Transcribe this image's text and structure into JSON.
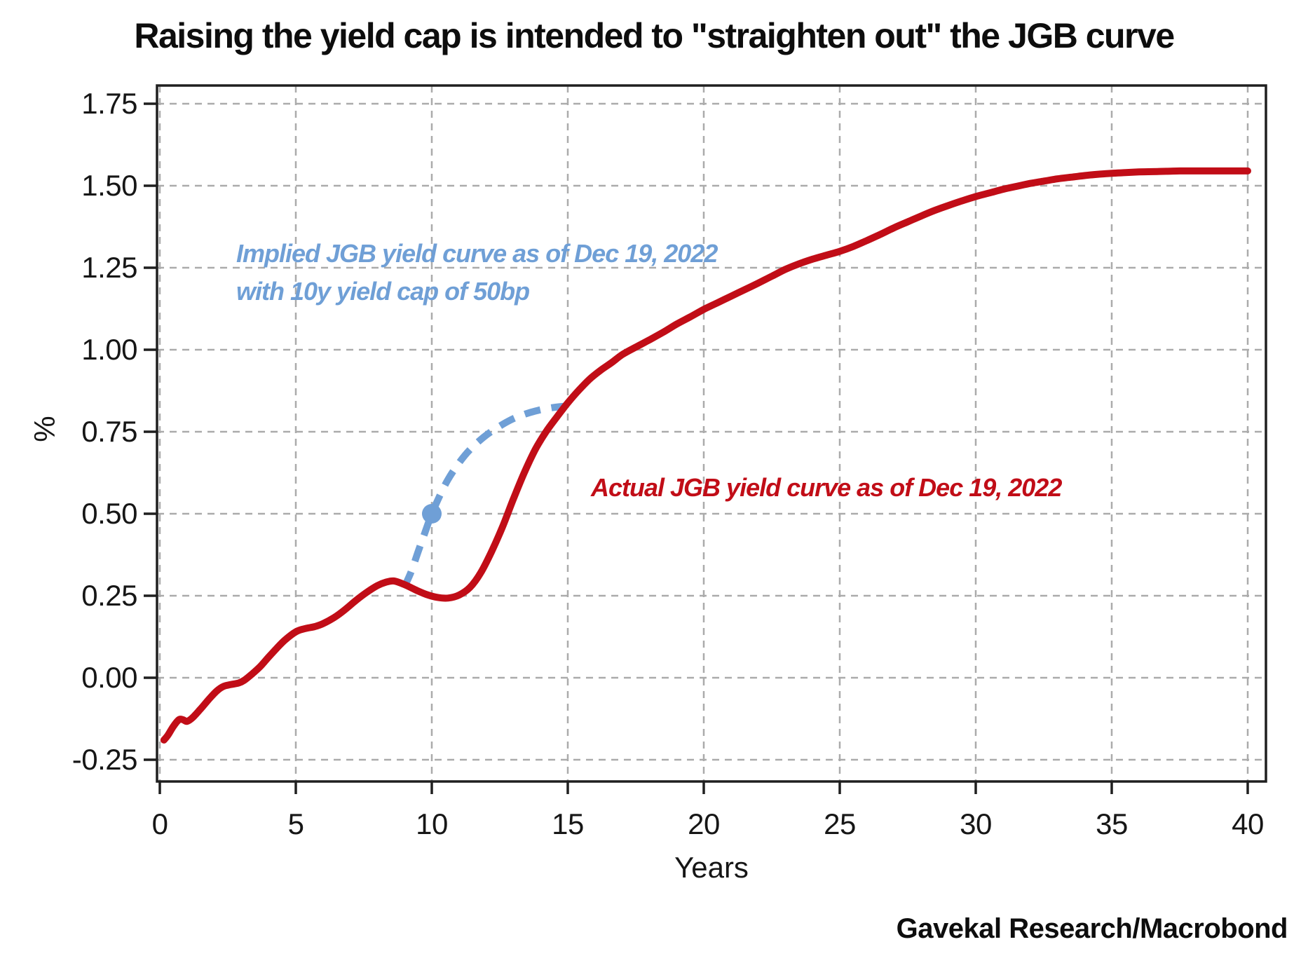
{
  "attribution": "Gavekal Research/Macrobond",
  "colors": {
    "actual_red": "#c10d17",
    "implied_blue": "#6f9fd6",
    "grid": "#ababab",
    "axis": "#1f1f1f"
  },
  "annotations": {
    "implied_line1": "Implied JGB yield curve as of Dec 19, 2022",
    "implied_line2": "with 10y yield cap of 50bp",
    "actual": "Actual JGB yield curve as of Dec 19, 2022"
  },
  "chart_data": {
    "type": "line",
    "title": "Raising the yield cap is intended to \"straighten out\" the JGB curve",
    "xlabel": "Years",
    "ylabel": "%",
    "xlim": [
      0,
      40
    ],
    "ylim": [
      -0.25,
      1.75
    ],
    "x_ticks": [
      0,
      5,
      10,
      15,
      20,
      25,
      30,
      35,
      40
    ],
    "y_ticks": [
      -0.25,
      0,
      0.25,
      0.5,
      0.75,
      1,
      1.25,
      1.5,
      1.75
    ],
    "grid": "dashed",
    "legend_position": "none",
    "series": [
      {
        "name": "Implied JGB yield curve as of Dec 19, 2022 with 10y yield cap of 50bp",
        "style": "dashed",
        "color": "#6f9fd6",
        "marker": {
          "x": 10,
          "y": 0.5
        },
        "points": [
          [
            9.0,
            0.278
          ],
          [
            9.25,
            0.325
          ],
          [
            9.5,
            0.385
          ],
          [
            9.75,
            0.443
          ],
          [
            10.0,
            0.5
          ],
          [
            10.3,
            0.556
          ],
          [
            10.6,
            0.605
          ],
          [
            11.0,
            0.655
          ],
          [
            11.4,
            0.695
          ],
          [
            11.9,
            0.733
          ],
          [
            12.4,
            0.762
          ],
          [
            12.9,
            0.786
          ],
          [
            13.4,
            0.803
          ],
          [
            13.9,
            0.815
          ],
          [
            14.4,
            0.823
          ],
          [
            14.9,
            0.828
          ]
        ]
      },
      {
        "name": "Actual JGB yield curve as of Dec 19, 2022",
        "style": "solid",
        "color": "#c10d17",
        "points": [
          [
            0.15,
            -0.19
          ],
          [
            0.3,
            -0.175
          ],
          [
            0.5,
            -0.148
          ],
          [
            0.7,
            -0.128
          ],
          [
            0.85,
            -0.128
          ],
          [
            1.0,
            -0.133
          ],
          [
            1.2,
            -0.122
          ],
          [
            1.5,
            -0.095
          ],
          [
            1.8,
            -0.066
          ],
          [
            2.1,
            -0.04
          ],
          [
            2.35,
            -0.026
          ],
          [
            2.6,
            -0.021
          ],
          [
            2.9,
            -0.016
          ],
          [
            3.1,
            -0.008
          ],
          [
            3.4,
            0.012
          ],
          [
            3.7,
            0.035
          ],
          [
            4.0,
            0.063
          ],
          [
            4.3,
            0.09
          ],
          [
            4.6,
            0.115
          ],
          [
            5.0,
            0.14
          ],
          [
            5.3,
            0.149
          ],
          [
            5.7,
            0.156
          ],
          [
            6.0,
            0.165
          ],
          [
            6.4,
            0.183
          ],
          [
            6.8,
            0.207
          ],
          [
            7.2,
            0.235
          ],
          [
            7.6,
            0.26
          ],
          [
            8.0,
            0.281
          ],
          [
            8.3,
            0.291
          ],
          [
            8.6,
            0.295
          ],
          [
            9.0,
            0.284
          ],
          [
            9.4,
            0.268
          ],
          [
            9.8,
            0.254
          ],
          [
            10.2,
            0.245
          ],
          [
            10.6,
            0.243
          ],
          [
            11.0,
            0.252
          ],
          [
            11.4,
            0.275
          ],
          [
            11.8,
            0.32
          ],
          [
            12.2,
            0.385
          ],
          [
            12.6,
            0.46
          ],
          [
            13.0,
            0.545
          ],
          [
            13.4,
            0.625
          ],
          [
            13.8,
            0.695
          ],
          [
            14.2,
            0.75
          ],
          [
            14.6,
            0.795
          ],
          [
            15.0,
            0.838
          ],
          [
            15.4,
            0.876
          ],
          [
            15.8,
            0.91
          ],
          [
            16.2,
            0.937
          ],
          [
            16.6,
            0.96
          ],
          [
            17.0,
            0.985
          ],
          [
            17.5,
            1.008
          ],
          [
            18.0,
            1.03
          ],
          [
            18.5,
            1.053
          ],
          [
            19.0,
            1.078
          ],
          [
            19.5,
            1.1
          ],
          [
            20.0,
            1.123
          ],
          [
            20.5,
            1.143
          ],
          [
            21.0,
            1.163
          ],
          [
            21.5,
            1.183
          ],
          [
            22.0,
            1.203
          ],
          [
            22.5,
            1.224
          ],
          [
            23.0,
            1.245
          ],
          [
            23.5,
            1.262
          ],
          [
            24.0,
            1.276
          ],
          [
            24.5,
            1.288
          ],
          [
            25.0,
            1.3
          ],
          [
            25.5,
            1.315
          ],
          [
            26.0,
            1.333
          ],
          [
            26.5,
            1.352
          ],
          [
            27.0,
            1.372
          ],
          [
            27.5,
            1.39
          ],
          [
            28.0,
            1.408
          ],
          [
            28.5,
            1.425
          ],
          [
            29.0,
            1.44
          ],
          [
            29.5,
            1.454
          ],
          [
            30.0,
            1.467
          ],
          [
            30.5,
            1.478
          ],
          [
            31.0,
            1.489
          ],
          [
            31.5,
            1.498
          ],
          [
            32.0,
            1.507
          ],
          [
            32.5,
            1.514
          ],
          [
            33.0,
            1.521
          ],
          [
            33.5,
            1.526
          ],
          [
            34.0,
            1.531
          ],
          [
            34.5,
            1.535
          ],
          [
            35.0,
            1.538
          ],
          [
            35.5,
            1.54
          ],
          [
            36.0,
            1.542
          ],
          [
            36.5,
            1.543
          ],
          [
            37.0,
            1.544
          ],
          [
            37.5,
            1.545
          ],
          [
            38.0,
            1.545
          ],
          [
            39.0,
            1.545
          ],
          [
            40.0,
            1.545
          ]
        ]
      }
    ]
  }
}
